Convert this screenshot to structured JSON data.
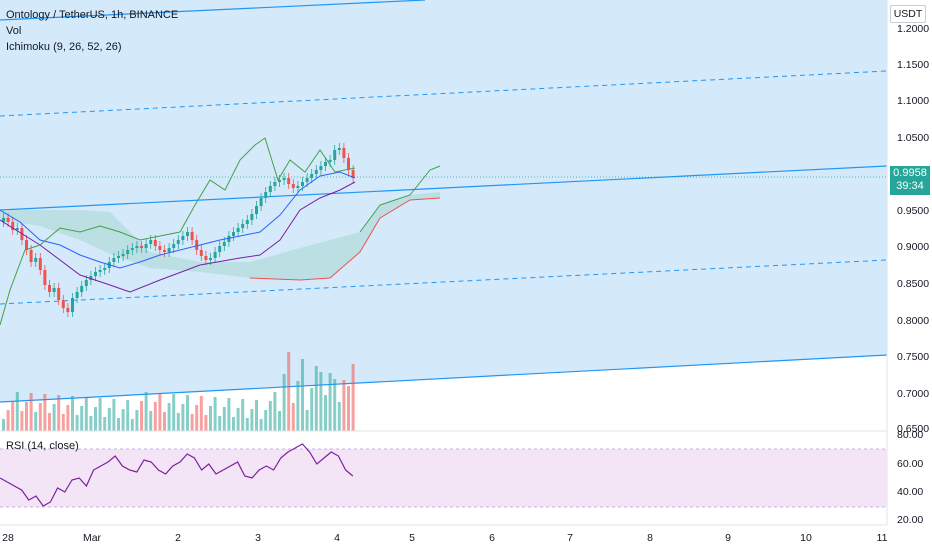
{
  "header": {
    "symbol_line": "Ontology / TetherUS, 1h, BINANCE",
    "indicator_vol": "Vol",
    "indicator_ichimoku": "Ichimoku (9, 26, 52, 26)",
    "rsi_label": "RSI (14, close)"
  },
  "price_axis": {
    "unit": "USDT",
    "ticks": [
      "1.2000",
      "1.1500",
      "1.1000",
      "1.0500",
      "0.9500",
      "0.9000",
      "0.8500",
      "0.8000",
      "0.7500",
      "0.7000",
      "0.6500"
    ],
    "last_price": "0.9958",
    "countdown": "39:34"
  },
  "rsi_axis": {
    "ticks": [
      "80.00",
      "60.00",
      "40.00",
      "20.00"
    ]
  },
  "time_axis": {
    "ticks": [
      "28",
      "Mar",
      "2",
      "3",
      "4",
      "5",
      "6",
      "7",
      "8",
      "9",
      "10",
      "11"
    ]
  },
  "colors": {
    "up": "#26a69a",
    "down": "#ef5350",
    "channel": "#2196f3",
    "channel_fill": "#cfe8fb",
    "kijun": "#7b1fa2",
    "tenkan": "#2962ff",
    "lagging": "#43a047",
    "rsi": "#7b1fa2",
    "rsi_band": "#f3e5f5"
  }
}
